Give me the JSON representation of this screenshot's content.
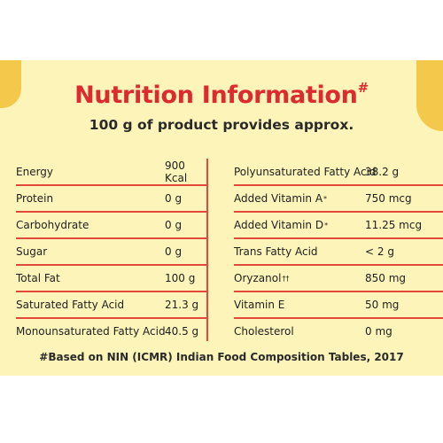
{
  "header": {
    "title": "Nutrition Information",
    "title_mark": "#",
    "subtitle": "100 g of product provides approx."
  },
  "left_rows": [
    {
      "name": "Energy",
      "value": "900 Kcal"
    },
    {
      "name": "Protein",
      "value": "0 g"
    },
    {
      "name": "Carbohydrate",
      "value": "0 g"
    },
    {
      "name": "Sugar",
      "value": "0 g"
    },
    {
      "name": "Total Fat",
      "value": "100 g"
    },
    {
      "name": "Saturated Fatty Acid",
      "value": "21.3 g"
    },
    {
      "name": "Monounsaturated Fatty Acid",
      "value": "40.5 g"
    }
  ],
  "right_rows": [
    {
      "name": "Polyunsaturated Fatty Acid",
      "mark": "",
      "value": "38.2 g"
    },
    {
      "name": "Added Vitamin A",
      "mark": "*",
      "value": "750 mcg"
    },
    {
      "name": "Added Vitamin D",
      "mark": "*",
      "value": "11.25 mcg"
    },
    {
      "name": "Trans Fatty Acid",
      "mark": "",
      "value": "< 2 g"
    },
    {
      "name": "Oryzanol",
      "mark": "††",
      "value": "850 mg"
    },
    {
      "name": "Vitamin E",
      "mark": "",
      "value": "50 mg"
    },
    {
      "name": "Cholesterol",
      "mark": "",
      "value": "0 mg"
    }
  ],
  "footnote": "#Based on NIN (ICMR) Indian Food Composition Tables, 2017",
  "colors": {
    "panel_background": "#fdf4b9",
    "accent_red": "#dc2a2f",
    "rule_red": "#e14a3a",
    "corner_yellow": "#f4c84a"
  }
}
